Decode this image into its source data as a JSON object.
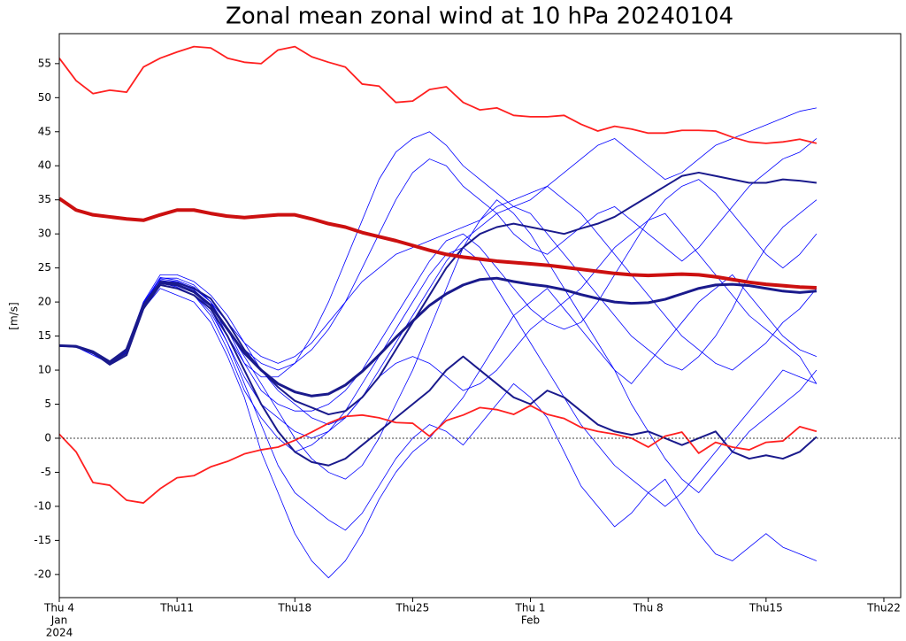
{
  "chart_data": {
    "type": "line",
    "title": "Zonal mean zonal wind at 10 hPa 20240104",
    "y_label": "[m/s]",
    "x": [
      "2024-01-04",
      "2024-01-05",
      "2024-01-06",
      "2024-01-07",
      "2024-01-08",
      "2024-01-09",
      "2024-01-10",
      "2024-01-11",
      "2024-01-12",
      "2024-01-13",
      "2024-01-14",
      "2024-01-15",
      "2024-01-16",
      "2024-01-17",
      "2024-01-18",
      "2024-01-19",
      "2024-01-20",
      "2024-01-21",
      "2024-01-22",
      "2024-01-23",
      "2024-01-24",
      "2024-01-25",
      "2024-01-26",
      "2024-01-27",
      "2024-01-28",
      "2024-01-29",
      "2024-01-30",
      "2024-01-31",
      "2024-02-01",
      "2024-02-02",
      "2024-02-03",
      "2024-02-04",
      "2024-02-05",
      "2024-02-06",
      "2024-02-07",
      "2024-02-08",
      "2024-02-09",
      "2024-02-10",
      "2024-02-11",
      "2024-02-12",
      "2024-02-13",
      "2024-02-14",
      "2024-02-15",
      "2024-02-16",
      "2024-02-17",
      "2024-02-18"
    ],
    "xlim": [
      "2024-01-04",
      "2024-02-23"
    ],
    "xticks": [
      {
        "value": "2024-01-04",
        "label": "Thu 4",
        "sublabels": [
          "Jan",
          "2024"
        ]
      },
      {
        "value": "2024-01-11",
        "label": "Thu11"
      },
      {
        "value": "2024-01-18",
        "label": "Thu18"
      },
      {
        "value": "2024-01-25",
        "label": "Thu25"
      },
      {
        "value": "2024-02-01",
        "label": "Thu 1",
        "sublabels": [
          "Feb"
        ]
      },
      {
        "value": "2024-02-08",
        "label": "Thu 8"
      },
      {
        "value": "2024-02-15",
        "label": "Thu15"
      },
      {
        "value": "2024-02-22",
        "label": "Thu22"
      }
    ],
    "ylim": [
      -23.4,
      59.4
    ],
    "yticks": [
      -20,
      -15,
      -10,
      -5,
      0,
      5,
      10,
      15,
      20,
      25,
      30,
      35,
      40,
      45,
      50,
      55
    ],
    "zero_line": true,
    "series": [
      {
        "color": "#0000ff",
        "line_width": 0.8,
        "values": [
          13.5,
          13.4,
          12.2,
          11,
          12.8,
          19.5,
          23.5,
          23.5,
          22.5,
          20,
          15,
          11,
          9,
          9,
          11,
          15,
          20,
          26,
          32,
          38,
          42,
          44,
          45,
          43,
          40,
          38,
          36,
          34,
          35,
          37,
          39,
          41,
          43,
          44,
          42,
          40,
          38,
          39,
          41,
          43,
          44,
          45,
          46,
          47,
          48,
          48.5
        ]
      },
      {
        "color": "#0000ff",
        "line_width": 0.8,
        "values": [
          13.5,
          13.4,
          12.6,
          11.2,
          13,
          19,
          22,
          21,
          20,
          17,
          12,
          6,
          -2,
          -8,
          -14,
          -18,
          -20.5,
          -18,
          -14,
          -9,
          -5,
          -2,
          0,
          3,
          6,
          10,
          14,
          18,
          20,
          22,
          19,
          16,
          13,
          10,
          8,
          11,
          14,
          17,
          20,
          22,
          24,
          21,
          18,
          15,
          13,
          12
        ]
      },
      {
        "color": "#0000ff",
        "line_width": 0.8,
        "values": [
          13.6,
          13.5,
          12.5,
          11,
          13,
          20,
          24,
          24,
          23,
          21,
          18,
          14,
          10,
          7,
          5,
          3,
          2,
          3,
          6,
          10,
          14,
          18,
          22,
          26,
          29,
          31,
          33,
          34,
          33,
          30,
          27,
          24,
          21,
          18,
          15,
          13,
          11,
          10,
          12,
          15,
          19,
          24,
          28,
          31,
          33,
          35
        ]
      },
      {
        "color": "#0000ff",
        "line_width": 0.8,
        "values": [
          13.6,
          13.5,
          12.7,
          11.2,
          13.2,
          20,
          23,
          22.5,
          21.5,
          19,
          14,
          8,
          2,
          -4,
          -8,
          -10,
          -12,
          -13.5,
          -11,
          -7,
          -3,
          0,
          2,
          1,
          -1,
          2,
          5,
          8,
          6,
          3,
          -2,
          -7,
          -10,
          -13,
          -11,
          -8,
          -6,
          -10,
          -14,
          -17,
          -18,
          -16,
          -14,
          -16,
          -17,
          -18
        ]
      },
      {
        "color": "#0000ff",
        "line_width": 0.8,
        "values": [
          13.5,
          13.4,
          12.4,
          10.8,
          12.6,
          19.2,
          23,
          23,
          22,
          20.5,
          17,
          14,
          12,
          11,
          12,
          14,
          17,
          20,
          23,
          25,
          27,
          28,
          29,
          30,
          31,
          32,
          34,
          35,
          36,
          37,
          35,
          33,
          30,
          27,
          24,
          21,
          18,
          15,
          13,
          11,
          10,
          12,
          14,
          17,
          19,
          22
        ]
      },
      {
        "color": "#0000ff",
        "line_width": 0.8,
        "values": [
          13.6,
          13.5,
          12.6,
          11.1,
          12.9,
          19.6,
          22.8,
          22.2,
          21,
          18.5,
          14,
          9,
          5,
          3,
          1,
          0,
          1,
          3,
          6,
          9,
          11,
          12,
          11,
          9,
          7,
          8,
          10,
          13,
          16,
          18,
          20,
          22,
          25,
          28,
          30,
          32,
          33,
          30,
          27,
          24,
          21,
          18,
          16,
          14,
          12,
          8
        ]
      },
      {
        "color": "#0000ff",
        "line_width": 0.8,
        "values": [
          13.5,
          13.4,
          12.5,
          11,
          12.7,
          19.4,
          23.2,
          22.8,
          21.8,
          19.5,
          16,
          12,
          8,
          4,
          0,
          -3,
          -5,
          -6,
          -4,
          0,
          5,
          10,
          16,
          22,
          28,
          32,
          35,
          33,
          30,
          26,
          22,
          18,
          14,
          10,
          5,
          1,
          -3,
          -6,
          -8,
          -5,
          -2,
          1,
          3,
          5,
          7,
          10
        ]
      },
      {
        "color": "#0000ff",
        "line_width": 0.8,
        "values": [
          13.6,
          13.5,
          12.6,
          11,
          12.8,
          19.8,
          23.6,
          23.2,
          22.2,
          20,
          16,
          11,
          7,
          5,
          4,
          4,
          5,
          7,
          10,
          14,
          18,
          22,
          26,
          29,
          30,
          28,
          25,
          22,
          19,
          17,
          16,
          17,
          20,
          24,
          28,
          32,
          35,
          37,
          38,
          36,
          33,
          30,
          27,
          25,
          27,
          30
        ]
      },
      {
        "color": "#0000ff",
        "line_width": 0.8,
        "values": [
          13.5,
          13.4,
          12.5,
          11.1,
          13,
          19.3,
          22.5,
          22,
          21,
          18,
          13,
          7,
          3,
          0,
          -2,
          -1,
          1,
          4,
          8,
          12,
          16,
          20,
          24,
          27,
          28,
          26,
          22,
          18,
          14,
          10,
          6,
          2,
          -1,
          -4,
          -6,
          -8,
          -10,
          -8,
          -5,
          -2,
          1,
          4,
          7,
          10,
          9,
          8
        ]
      },
      {
        "color": "#0000ff",
        "line_width": 0.8,
        "values": [
          13.6,
          13.5,
          12.7,
          11.3,
          13.1,
          19.9,
          23.4,
          23,
          22,
          20,
          17,
          13,
          11,
          10,
          11,
          13,
          16,
          20,
          25,
          30,
          35,
          39,
          41,
          40,
          37,
          35,
          33,
          30,
          28,
          27,
          29,
          31,
          33,
          34,
          32,
          30,
          28,
          26,
          28,
          31,
          34,
          37,
          39,
          41,
          42,
          44
        ]
      },
      {
        "color": "#1a1a8c",
        "line_width": 2,
        "values": [
          13.6,
          13.5,
          12.5,
          11.0,
          12.5,
          19.0,
          23.0,
          22.8,
          22,
          20.5,
          17,
          13,
          10,
          7.5,
          5.5,
          4.5,
          3.5,
          4,
          6,
          9,
          13,
          17,
          21,
          25,
          28,
          30,
          31,
          31.5,
          31,
          30.5,
          30,
          30.8,
          31.5,
          32.5,
          34,
          35.5,
          37,
          38.5,
          39,
          38.5,
          38,
          37.5,
          37.5,
          38,
          37.8,
          37.5
        ]
      },
      {
        "color": "#1a1a8c",
        "line_width": 2,
        "values": [
          13.6,
          13.4,
          12.6,
          10.8,
          12.2,
          19,
          22.5,
          22,
          21,
          19,
          15,
          10,
          5,
          1,
          -2,
          -3.5,
          -4,
          -3,
          -1,
          1,
          3,
          5,
          7,
          10,
          12,
          10,
          8,
          6,
          5,
          7,
          6,
          4,
          2,
          1,
          0.5,
          1,
          0,
          -1,
          0,
          1,
          -2,
          -3,
          -2.5,
          -3,
          -2,
          0.2
        ]
      },
      {
        "color": "#1a1a8c",
        "line_width": 3,
        "values": [
          13.6,
          13.5,
          12.7,
          11.2,
          13.0,
          19.5,
          22.8,
          22.5,
          21.5,
          19.5,
          16.0,
          12.5,
          10.0,
          8.0,
          6.8,
          6.2,
          6.5,
          7.8,
          9.8,
          12.2,
          14.8,
          17.2,
          19.5,
          21.2,
          22.5,
          23.3,
          23.5,
          23.0,
          22.6,
          22.3,
          21.8,
          21.1,
          20.5,
          20.0,
          19.8,
          19.9,
          20.4,
          21.2,
          22.0,
          22.5,
          22.6,
          22.4,
          22.0,
          21.6,
          21.4,
          21.6
        ]
      },
      {
        "color": "#ff2020",
        "line_width": 1.8,
        "values": [
          55.8,
          52.5,
          50.6,
          51.1,
          50.8,
          54.5,
          55.8,
          56.7,
          57.5,
          57.3,
          55.8,
          55.2,
          55,
          57,
          57.5,
          56,
          55.2,
          54.5,
          52,
          51.7,
          49.3,
          49.5,
          51.2,
          51.6,
          49.3,
          48.2,
          48.5,
          47.4,
          47.2,
          47.2,
          47.4,
          46.1,
          45.1,
          45.8,
          45.4,
          44.8,
          44.8,
          45.2,
          45.2,
          45.1,
          44.2,
          43.5,
          43.3,
          43.5,
          43.9,
          43.3
        ]
      },
      {
        "color": "#ff2020",
        "line_width": 1.8,
        "values": [
          0.6,
          -2,
          -6.5,
          -6.9,
          -9.1,
          -9.5,
          -7.4,
          -5.8,
          -5.5,
          -4.2,
          -3.4,
          -2.3,
          -1.7,
          -1.3,
          -0.3,
          0.9,
          2.2,
          3.2,
          3.4,
          3,
          2.3,
          2.2,
          0.3,
          2.6,
          3.4,
          4.5,
          4.2,
          3.5,
          4.8,
          3.5,
          2.9,
          1.6,
          1,
          0.6,
          0,
          -1.3,
          0.3,
          0.9,
          -2.2,
          -0.6,
          -1.3,
          -1.7,
          -0.6,
          -0.4,
          1.7,
          1
        ]
      },
      {
        "color": "#cc1010",
        "line_width": 4,
        "values": [
          35.2,
          33.5,
          32.8,
          32.5,
          32.2,
          32.0,
          32.8,
          33.5,
          33.5,
          33.0,
          32.6,
          32.4,
          32.6,
          32.8,
          32.8,
          32.2,
          31.5,
          31.0,
          30.2,
          29.6,
          29.0,
          28.3,
          27.6,
          27.0,
          26.6,
          26.3,
          26.0,
          25.8,
          25.6,
          25.4,
          25.1,
          24.8,
          24.5,
          24.2,
          24.0,
          23.9,
          24.0,
          24.1,
          24.0,
          23.7,
          23.3,
          22.9,
          22.6,
          22.4,
          22.2,
          22.1
        ]
      }
    ]
  }
}
